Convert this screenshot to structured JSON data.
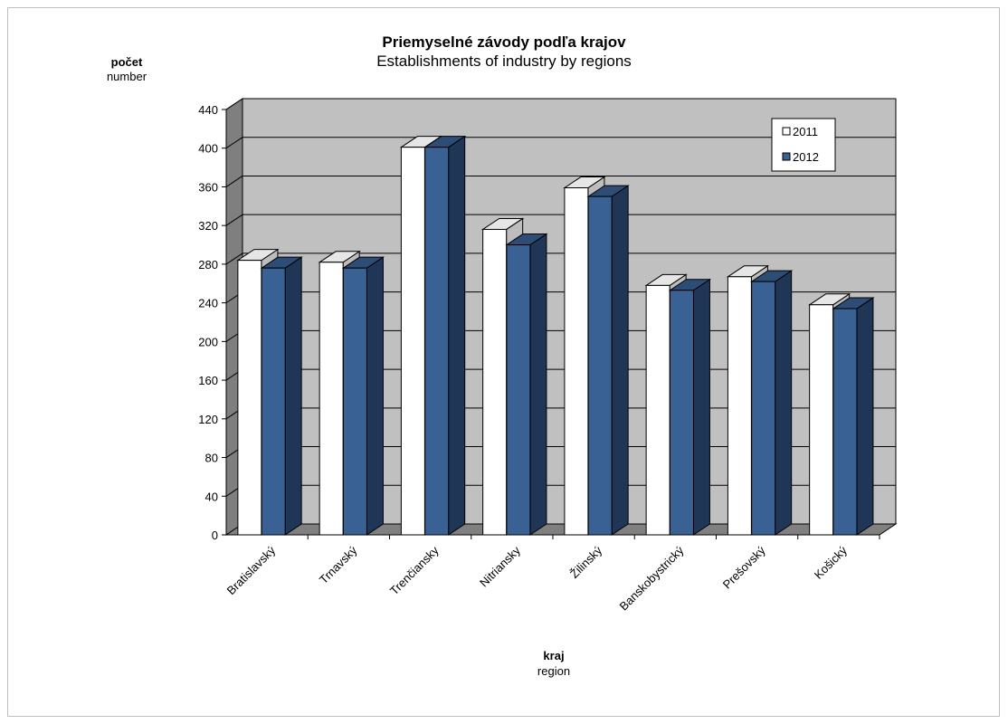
{
  "chart_data": {
    "type": "bar",
    "title": "Priemyselné závody podľa krajov",
    "subtitle": "Establishments of industry by regions",
    "ylabel": "počet",
    "ylabel_sub": "number",
    "xlabel": "kraj",
    "xlabel_sub": "region",
    "ylim": [
      0,
      440
    ],
    "yticks": [
      0,
      40,
      80,
      120,
      160,
      200,
      240,
      280,
      320,
      360,
      400,
      440
    ],
    "grid": true,
    "legend_position": "top-right",
    "categories": [
      "Bratislavský",
      "Trnavský",
      "Trenčiansky",
      "Nitriansky",
      "Žilinský",
      "Banskobystrický",
      "Prešovský",
      "Košický"
    ],
    "series": [
      {
        "name": "2011",
        "color": "#ffffff",
        "values": [
          284,
          282,
          401,
          316,
          359,
          258,
          267,
          238
        ]
      },
      {
        "name": "2012",
        "color": "#3a6193",
        "values": [
          276,
          276,
          401,
          300,
          350,
          253,
          262,
          234
        ]
      }
    ]
  }
}
